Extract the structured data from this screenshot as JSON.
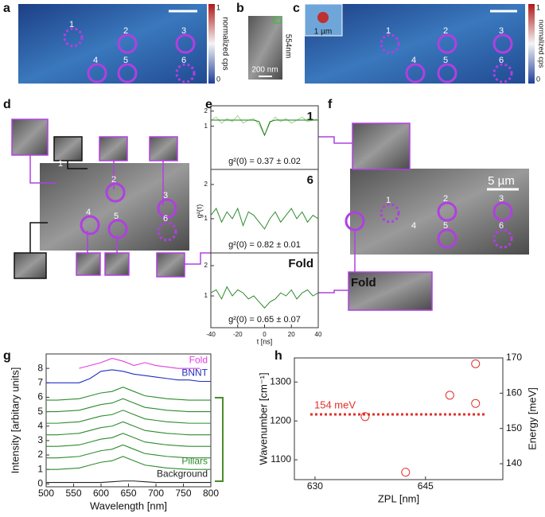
{
  "panels": {
    "a": {
      "letter": "a",
      "labels": [
        "1",
        "2",
        "3",
        "4",
        "5",
        "6"
      ],
      "colorbar": {
        "title": "normalized cps",
        "max": "1",
        "min": "0"
      }
    },
    "b": {
      "letter": "b",
      "scale_height": "554nm",
      "scale_bar": "200 nm"
    },
    "c": {
      "letter": "c",
      "labels": [
        "1",
        "2",
        "3",
        "4",
        "5",
        "6"
      ],
      "inset_scale": "1 µm",
      "colorbar": {
        "title": "normalized cps",
        "max": "1",
        "min": "0"
      }
    },
    "d": {
      "letter": "d",
      "labels": [
        "1",
        "2",
        "3",
        "4",
        "5",
        "6"
      ]
    },
    "e": {
      "letter": "e"
    },
    "f": {
      "letter": "f",
      "labels": [
        "1",
        "2",
        "3",
        "4",
        "5",
        "6"
      ],
      "scale_bar": "5 µm",
      "inset_label": "Fold"
    },
    "g": {
      "letter": "g"
    },
    "h": {
      "letter": "h"
    }
  },
  "chart_data": [
    {
      "type": "line",
      "annotation": "1",
      "text": "g²(0) = 0.37 ± 0.02",
      "x": [
        -40,
        -36,
        -32,
        -28,
        -24,
        -20,
        -16,
        -12,
        -8,
        -4,
        0,
        4,
        8,
        12,
        16,
        20,
        24,
        28,
        32,
        36,
        40
      ],
      "series": [
        {
          "color": "#9ed98f",
          "values": [
            1.4,
            1.6,
            1.2,
            1.5,
            1.3,
            1.7,
            1.2,
            1.4,
            1.5,
            1.1,
            0.4,
            1.2,
            1.6,
            1.3,
            1.5,
            1.2,
            1.4,
            1.6,
            1.3,
            1.4,
            1.5
          ]
        },
        {
          "color": "#1f7a1f",
          "values": [
            1.4,
            1.4,
            1.4,
            1.4,
            1.4,
            1.4,
            1.4,
            1.4,
            1.4,
            1.3,
            0.4,
            1.3,
            1.4,
            1.4,
            1.4,
            1.4,
            1.4,
            1.4,
            1.4,
            1.4,
            1.4
          ]
        }
      ],
      "xlim": [
        -40,
        40
      ],
      "ylim": [
        -1.86,
        2.35
      ],
      "yticks": [
        1,
        2
      ]
    },
    {
      "type": "line",
      "annotation": "6",
      "text": "g²(0) = 0.82 ± 0.01",
      "ylabel": "g²(τ)",
      "x": [
        -40,
        -36,
        -32,
        -28,
        -24,
        -20,
        -16,
        -12,
        -8,
        -4,
        0,
        4,
        8,
        12,
        16,
        20,
        24,
        28,
        32,
        36,
        40
      ],
      "series": [
        {
          "color": "#2e8b2e",
          "values": [
            1.1,
            1.3,
            0.9,
            1.2,
            1.0,
            1.3,
            0.8,
            1.2,
            1.1,
            0.9,
            0.7,
            1.0,
            1.2,
            0.9,
            1.1,
            1.3,
            1.0,
            1.2,
            0.9,
            1.1,
            1.0
          ]
        }
      ],
      "xlim": [
        -40,
        40
      ],
      "ylim": [
        0,
        2.44
      ],
      "yticks": [
        1,
        2
      ]
    },
    {
      "type": "line",
      "annotation": "Fold",
      "text": "g²(0) = 0.65 ± 0.07",
      "xlabel": "t [ns]",
      "x": [
        -40,
        -36,
        -32,
        -28,
        -24,
        -20,
        -16,
        -12,
        -8,
        -4,
        0,
        4,
        8,
        12,
        16,
        20,
        24,
        28,
        32,
        36,
        40
      ],
      "series": [
        {
          "color": "#2e8b2e",
          "values": [
            1.1,
            1.2,
            0.9,
            1.3,
            1.0,
            1.2,
            1.1,
            0.9,
            1.0,
            0.8,
            0.6,
            0.8,
            0.9,
            1.1,
            1.0,
            1.2,
            0.9,
            1.1,
            1.2,
            1.0,
            1.1
          ]
        }
      ],
      "xlim": [
        -40,
        40
      ],
      "xticks": [
        -40,
        -20,
        0,
        20,
        40
      ],
      "ylim": [
        -0.05,
        2.42
      ],
      "yticks": [
        1,
        2
      ]
    },
    {
      "type": "line",
      "xlabel": "Wavelength [nm]",
      "ylabel": "Intensity [arbitary units]",
      "x": [
        500,
        520,
        540,
        560,
        580,
        600,
        620,
        640,
        660,
        680,
        700,
        720,
        740,
        760,
        780,
        800
      ],
      "series": [
        {
          "name": "Fold",
          "color": "#e040e0",
          "values": [
            null,
            null,
            null,
            8.0,
            8.2,
            8.4,
            8.7,
            8.5,
            8.2,
            8.4,
            8.2,
            8.1,
            8.0,
            8.0,
            8.0,
            null
          ]
        },
        {
          "name": "BNNT",
          "color": "#2030c0",
          "values": [
            7,
            7,
            7,
            7,
            7.3,
            7.8,
            7.9,
            7.8,
            7.6,
            7.5,
            7.4,
            7.3,
            7.2,
            7.2,
            7.1,
            7.1
          ]
        },
        {
          "color": "#2e8b2e",
          "values": [
            5.8,
            5.8,
            5.85,
            5.9,
            6.1,
            6.3,
            6.4,
            6.7,
            6.4,
            6.1,
            6,
            5.9,
            5.85,
            5.8,
            5.8,
            5.8
          ]
        },
        {
          "color": "#2e8b2e",
          "values": [
            5,
            5,
            5.05,
            5.1,
            5.3,
            5.5,
            5.6,
            5.9,
            5.6,
            5.3,
            5.2,
            5.1,
            5.05,
            5,
            5,
            5
          ]
        },
        {
          "color": "#2e8b2e",
          "values": [
            4.2,
            4.2,
            4.25,
            4.3,
            4.5,
            4.7,
            4.8,
            5.1,
            4.8,
            4.5,
            4.4,
            4.3,
            4.25,
            4.2,
            4.2,
            4.2
          ]
        },
        {
          "color": "#2e8b2e",
          "values": [
            3.4,
            3.4,
            3.45,
            3.5,
            3.7,
            3.9,
            4,
            4.3,
            4,
            3.7,
            3.6,
            3.5,
            3.45,
            3.4,
            3.4,
            3.4
          ]
        },
        {
          "color": "#2e8b2e",
          "values": [
            2.6,
            2.6,
            2.65,
            2.7,
            2.9,
            3.1,
            3.2,
            3.5,
            3.2,
            2.9,
            2.8,
            2.7,
            2.65,
            2.6,
            2.6,
            2.6
          ]
        },
        {
          "color": "#2e8b2e",
          "values": [
            1.8,
            1.8,
            1.85,
            1.9,
            2.1,
            2.3,
            2.4,
            2.7,
            2.4,
            2.1,
            2,
            1.9,
            1.85,
            1.8,
            1.8,
            1.8
          ]
        },
        {
          "name": "Pillars",
          "color": "#2e8b2e",
          "values": [
            1,
            1,
            1.05,
            1.1,
            1.3,
            1.5,
            1.6,
            1.9,
            1.6,
            1.3,
            1.2,
            1.1,
            1.05,
            1,
            1,
            1
          ]
        },
        {
          "name": "Background",
          "color": "#222222",
          "values": [
            0.1,
            0.1,
            0.1,
            0.1,
            0.1,
            0.1,
            0.15,
            0.2,
            0.2,
            0.15,
            0.1,
            0.1,
            0.1,
            0.1,
            0.1,
            0.1
          ]
        }
      ],
      "xlim": [
        500,
        800
      ],
      "xticks": [
        500,
        550,
        600,
        650,
        700,
        750,
        800
      ],
      "ylim": [
        -0.2,
        9
      ],
      "yticks": [
        0,
        1,
        2,
        3,
        4,
        5,
        6,
        7,
        8
      ]
    },
    {
      "type": "scatter",
      "xlabel": "ZPL [nm]",
      "ylabel": "Wavenumber [cm⁻¹]",
      "y2label": "Energy [meV]",
      "x": [
        636.8,
        642.3,
        648.3,
        651.8,
        651.8
      ],
      "values": [
        1211,
        1068,
        1266,
        1245,
        1347
      ],
      "color": "#e0302a",
      "xlim": [
        627.2,
        655.5
      ],
      "xticks": [
        630,
        645
      ],
      "ylim": [
        1049,
        1362
      ],
      "yticks": [
        1100,
        1200,
        1300
      ],
      "y2lim": [
        135.5,
        170
      ],
      "y2ticks": [
        140,
        150,
        160,
        170
      ],
      "hline": {
        "axis": "y2",
        "value": 154,
        "label": "154 meV",
        "color": "#e0302a"
      }
    }
  ]
}
